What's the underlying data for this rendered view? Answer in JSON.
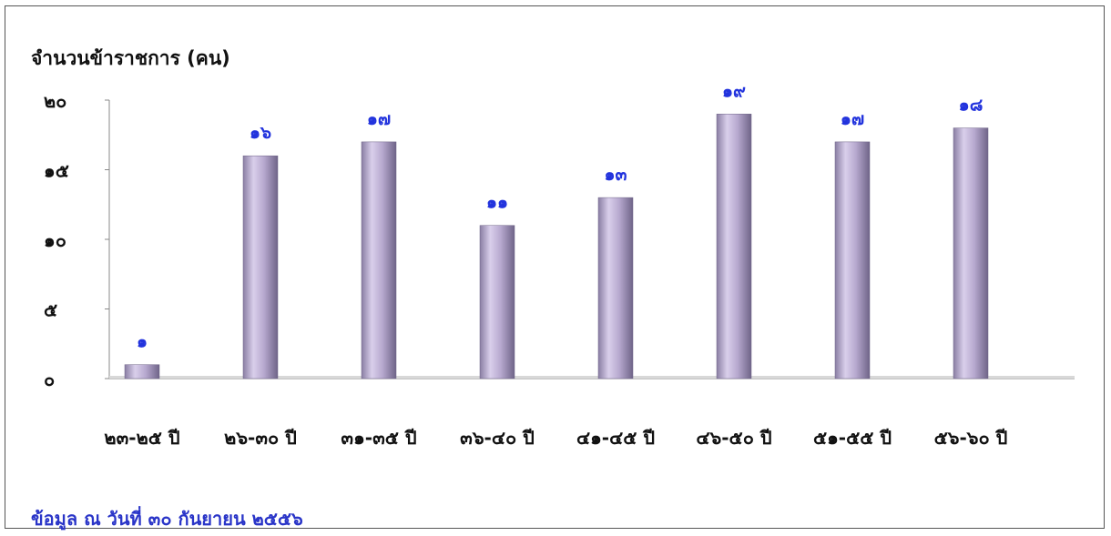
{
  "chart_data": {
    "type": "bar",
    "ylabel": "จำนวนข้าราชการ (คน)",
    "xlabel": "",
    "categories": [
      "๒๓-๒๕ ปี",
      "๒๖-๓๐ ปี",
      "๓๑-๓๕ ปี",
      "๓๖-๔๐ ปี",
      "๔๑-๔๕ ปี",
      "๔๖-๕๐ ปี",
      "๕๑-๕๕ ปี",
      "๕๖-๖๐ ปี"
    ],
    "values": [
      1,
      16,
      17,
      11,
      13,
      19,
      17,
      18
    ],
    "value_labels": [
      "๑",
      "๑๖",
      "๑๗",
      "๑๑",
      "๑๓",
      "๑๙",
      "๑๗",
      "๑๘"
    ],
    "ylim": [
      0,
      20
    ],
    "yticks": [
      0,
      5,
      10,
      15,
      20
    ],
    "ytick_labels": [
      "๐",
      "๕",
      "๑๐",
      "๑๕",
      "๒๐"
    ],
    "grid": false,
    "legend": "none",
    "bar_color": "#b7a9cf",
    "value_label_color": "#2233dd"
  },
  "footnote": "ข้อมูล ณ วันที่ ๓๐ กันยายน ๒๕๕๖"
}
